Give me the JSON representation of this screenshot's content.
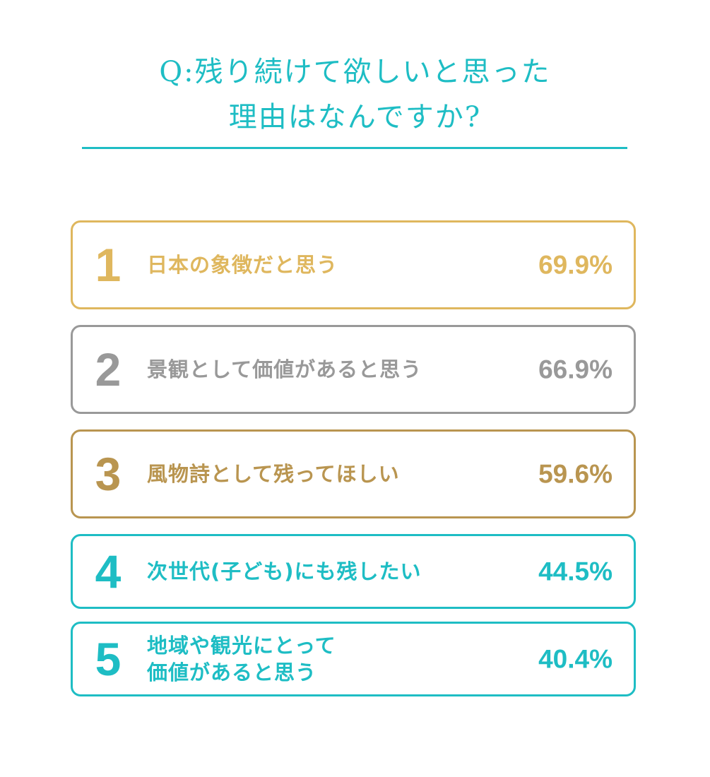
{
  "title": {
    "line1": "Q:残り続けて欲しいと思った",
    "line2": "理由はなんですか?"
  },
  "colors": {
    "teal": "#1ebdc4",
    "gold": "#dfb75e",
    "gray": "#999999",
    "bronze": "#b99550"
  },
  "chart_data": {
    "type": "table",
    "title": "Q:残り続けて欲しいと思った 理由はなんですか?",
    "rows": [
      {
        "rank": "1",
        "label": "日本の象徴だと思う",
        "value": 69.9,
        "value_text": "69.9%",
        "color": "#dfb75e"
      },
      {
        "rank": "2",
        "label": "景観として価値があると思う",
        "value": 66.9,
        "value_text": "66.9%",
        "color": "#999999"
      },
      {
        "rank": "3",
        "label": "風物詩として残ってほしい",
        "value": 59.6,
        "value_text": "59.6%",
        "color": "#b99550"
      },
      {
        "rank": "4",
        "label": "次世代(子ども)にも残したい",
        "value": 44.5,
        "value_text": "44.5%",
        "color": "#1ebdc4"
      },
      {
        "rank": "5",
        "label": "地域や観光にとって\n価値があると思う",
        "value": 40.4,
        "value_text": "40.4%",
        "color": "#1ebdc4"
      }
    ]
  }
}
